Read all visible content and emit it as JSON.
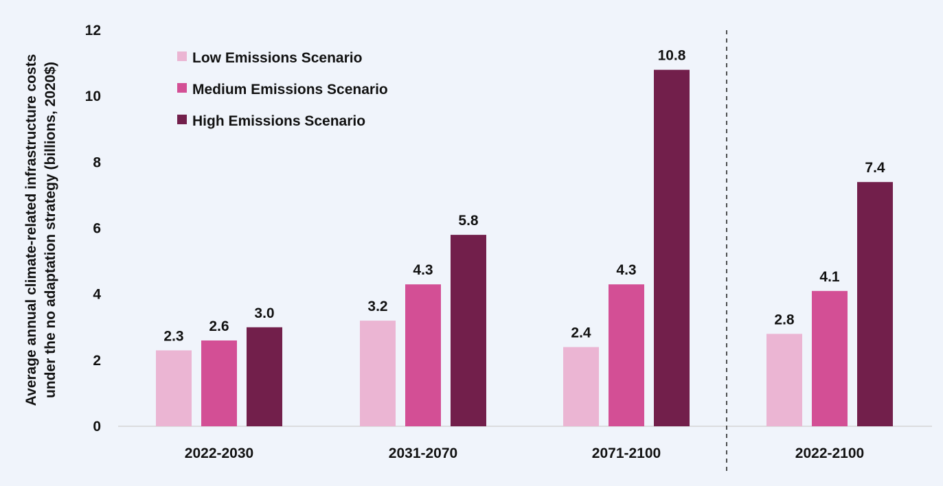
{
  "chart_data": {
    "type": "bar",
    "ylabel_lines": [
      "Average annual climate-related infrastructure costs",
      "under the no adaptation strategy (billions, 2020$)"
    ],
    "ylim": [
      0,
      12
    ],
    "yticks": [
      0,
      2,
      4,
      6,
      8,
      10,
      12
    ],
    "categories": [
      "2022-2030",
      "2031-2070",
      "2071-2100",
      "2022-2100"
    ],
    "separator_before_category": "2022-2100",
    "legend_position": "top-left",
    "grid": false,
    "series": [
      {
        "name": "Low Emissions Scenario",
        "color": "#ebb5d3",
        "values": [
          2.3,
          3.2,
          2.4,
          2.8
        ],
        "labels": [
          "2.3",
          "3.2",
          "2.4",
          "2.8"
        ]
      },
      {
        "name": "Medium Emissions Scenario",
        "color": "#d34f95",
        "values": [
          2.6,
          4.3,
          4.3,
          4.1
        ],
        "labels": [
          "2.6",
          "4.3",
          "4.3",
          "4.1"
        ]
      },
      {
        "name": "High Emissions Scenario",
        "color": "#721f4b",
        "values": [
          3.0,
          5.8,
          10.8,
          7.4
        ],
        "labels": [
          "3.0",
          "5.8",
          "10.8",
          "7.4"
        ]
      }
    ]
  }
}
